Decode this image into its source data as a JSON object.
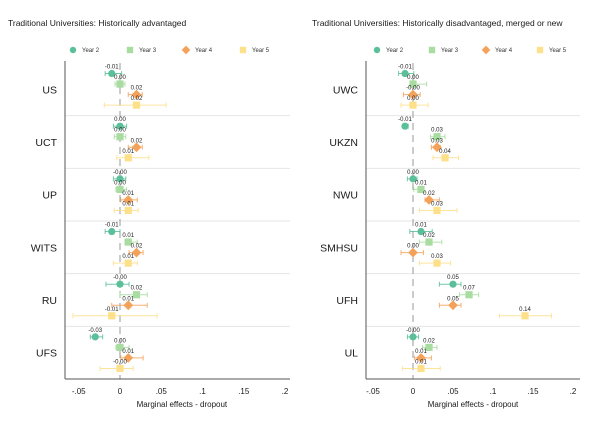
{
  "chart_data": [
    {
      "type": "scatter",
      "subtype": "coefficient-plot-with-confidence-intervals",
      "title": "Traditional Universities: Historically advantaged",
      "xlabel": "Marginal effects - dropout",
      "ylabel": "",
      "xlim": [
        -0.065,
        0.2
      ],
      "x_ticks": [
        -0.05,
        0,
        0.05,
        0.1,
        0.15,
        0.2
      ],
      "x_tick_labels": [
        "-.05",
        "0",
        ".05",
        ".1",
        ".15",
        ".2"
      ],
      "reference_line": 0,
      "grid": "horizontal separators between categories",
      "legend_position": "top",
      "categories": [
        "US",
        "UCT",
        "UP",
        "WITS",
        "RU",
        "UFS"
      ],
      "series": [
        {
          "name": "Year 2",
          "marker": "circle",
          "color": "#5bbf9a",
          "values": [
            -0.01,
            0.0,
            -0.0,
            -0.01,
            -0.0,
            -0.03
          ],
          "labels": [
            "-0.01",
            "0.00",
            "-0.00",
            "-0.01",
            "-0.00",
            "-0.03"
          ],
          "ci_low": [
            -0.018,
            -0.008,
            -0.008,
            -0.018,
            -0.017,
            -0.036
          ],
          "ci_high": [
            0.002,
            0.008,
            0.007,
            0.0,
            0.011,
            -0.021
          ]
        },
        {
          "name": "Year 3",
          "marker": "square",
          "color": "#a8dca0",
          "values": [
            0.0,
            0.0,
            0.0,
            0.01,
            0.02,
            0.0
          ],
          "labels": [
            "0.00",
            "0.00",
            "0.00",
            "0.01",
            "0.02",
            "0.00"
          ],
          "ci_low": [
            -0.006,
            -0.007,
            -0.005,
            0.006,
            0.0,
            -0.005
          ],
          "ci_high": [
            0.006,
            0.007,
            0.008,
            0.021,
            0.033,
            0.011
          ]
        },
        {
          "name": "Year 4",
          "marker": "diamond",
          "color": "#f4a25a",
          "values": [
            0.02,
            0.02,
            0.01,
            0.02,
            0.01,
            0.01
          ],
          "labels": [
            "0.02",
            "0.02",
            "0.01",
            "0.02",
            "0.01",
            "0.01"
          ],
          "ci_low": [
            0.01,
            0.01,
            0.001,
            0.011,
            -0.01,
            0.001
          ],
          "ci_high": [
            0.027,
            0.027,
            0.021,
            0.028,
            0.033,
            0.028
          ]
        },
        {
          "name": "Year 5",
          "marker": "square",
          "color": "#fde08a",
          "values": [
            0.02,
            0.01,
            0.01,
            0.01,
            -0.01,
            -0.0
          ],
          "labels": [
            "0.02",
            "0.01",
            "0.01",
            "0.01",
            "-0.01",
            "-0.00"
          ],
          "ci_low": [
            -0.019,
            -0.004,
            -0.007,
            -0.008,
            -0.057,
            -0.024
          ],
          "ci_high": [
            0.056,
            0.035,
            0.022,
            0.021,
            0.045,
            0.016
          ]
        }
      ]
    },
    {
      "type": "scatter",
      "subtype": "coefficient-plot-with-confidence-intervals",
      "title": "Traditional Universities: Historically disadvantaged, merged or new",
      "xlabel": "Marginal effects - dropout",
      "ylabel": "",
      "xlim": [
        -0.06,
        0.2
      ],
      "x_ticks": [
        -0.05,
        0,
        0.05,
        0.1,
        0.15,
        0.2
      ],
      "x_tick_labels": [
        "-.05",
        "0",
        ".05",
        ".1",
        ".15",
        ".2"
      ],
      "reference_line": 0,
      "grid": "horizontal separators between categories",
      "legend_position": "top",
      "categories": [
        "UWC",
        "UKZN",
        "NWU",
        "SMHSU",
        "UFH",
        "UL"
      ],
      "series": [
        {
          "name": "Year 2",
          "marker": "circle",
          "color": "#5bbf9a",
          "values": [
            -0.01,
            -0.01,
            0.0,
            0.01,
            0.05,
            -0.0
          ],
          "labels": [
            "-0.01",
            "-0.01",
            "0.00",
            "0.01",
            "0.05",
            "-0.00"
          ],
          "ci_low": [
            -0.018,
            -0.013,
            -0.007,
            -0.004,
            0.033,
            -0.007
          ],
          "ci_high": [
            0.001,
            -0.006,
            0.005,
            0.024,
            0.06,
            0.007
          ]
        },
        {
          "name": "Year 3",
          "marker": "square",
          "color": "#a8dca0",
          "values": [
            0.0,
            0.03,
            0.01,
            0.02,
            0.07,
            0.02
          ],
          "labels": [
            "0.00",
            "0.03",
            "0.01",
            "0.02",
            "0.07",
            "0.02"
          ],
          "ci_low": [
            -0.003,
            0.022,
            0.001,
            0.008,
            0.058,
            0.012
          ],
          "ci_high": [
            0.017,
            0.04,
            0.013,
            0.036,
            0.082,
            0.03
          ]
        },
        {
          "name": "Year 4",
          "marker": "diamond",
          "color": "#f4a25a",
          "values": [
            -0.0,
            0.03,
            0.02,
            0.0,
            0.05,
            0.01
          ],
          "labels": [
            "-0.00",
            "0.03",
            "0.02",
            "0.00",
            "0.05",
            "0.01"
          ],
          "ci_low": [
            -0.012,
            0.023,
            0.015,
            -0.015,
            0.033,
            0.002
          ],
          "ci_high": [
            0.009,
            0.034,
            0.033,
            0.013,
            0.06,
            0.023
          ]
        },
        {
          "name": "Year 5",
          "marker": "square",
          "color": "#fde08a",
          "values": [
            0.0,
            0.04,
            0.03,
            0.03,
            0.14,
            0.01
          ],
          "labels": [
            "0.00",
            "0.04",
            "0.03",
            "0.03",
            "0.14",
            "0.01"
          ],
          "ci_low": [
            -0.015,
            0.025,
            0.008,
            0.008,
            0.108,
            -0.013
          ],
          "ci_high": [
            0.019,
            0.057,
            0.055,
            0.047,
            0.173,
            0.034
          ]
        }
      ]
    }
  ]
}
